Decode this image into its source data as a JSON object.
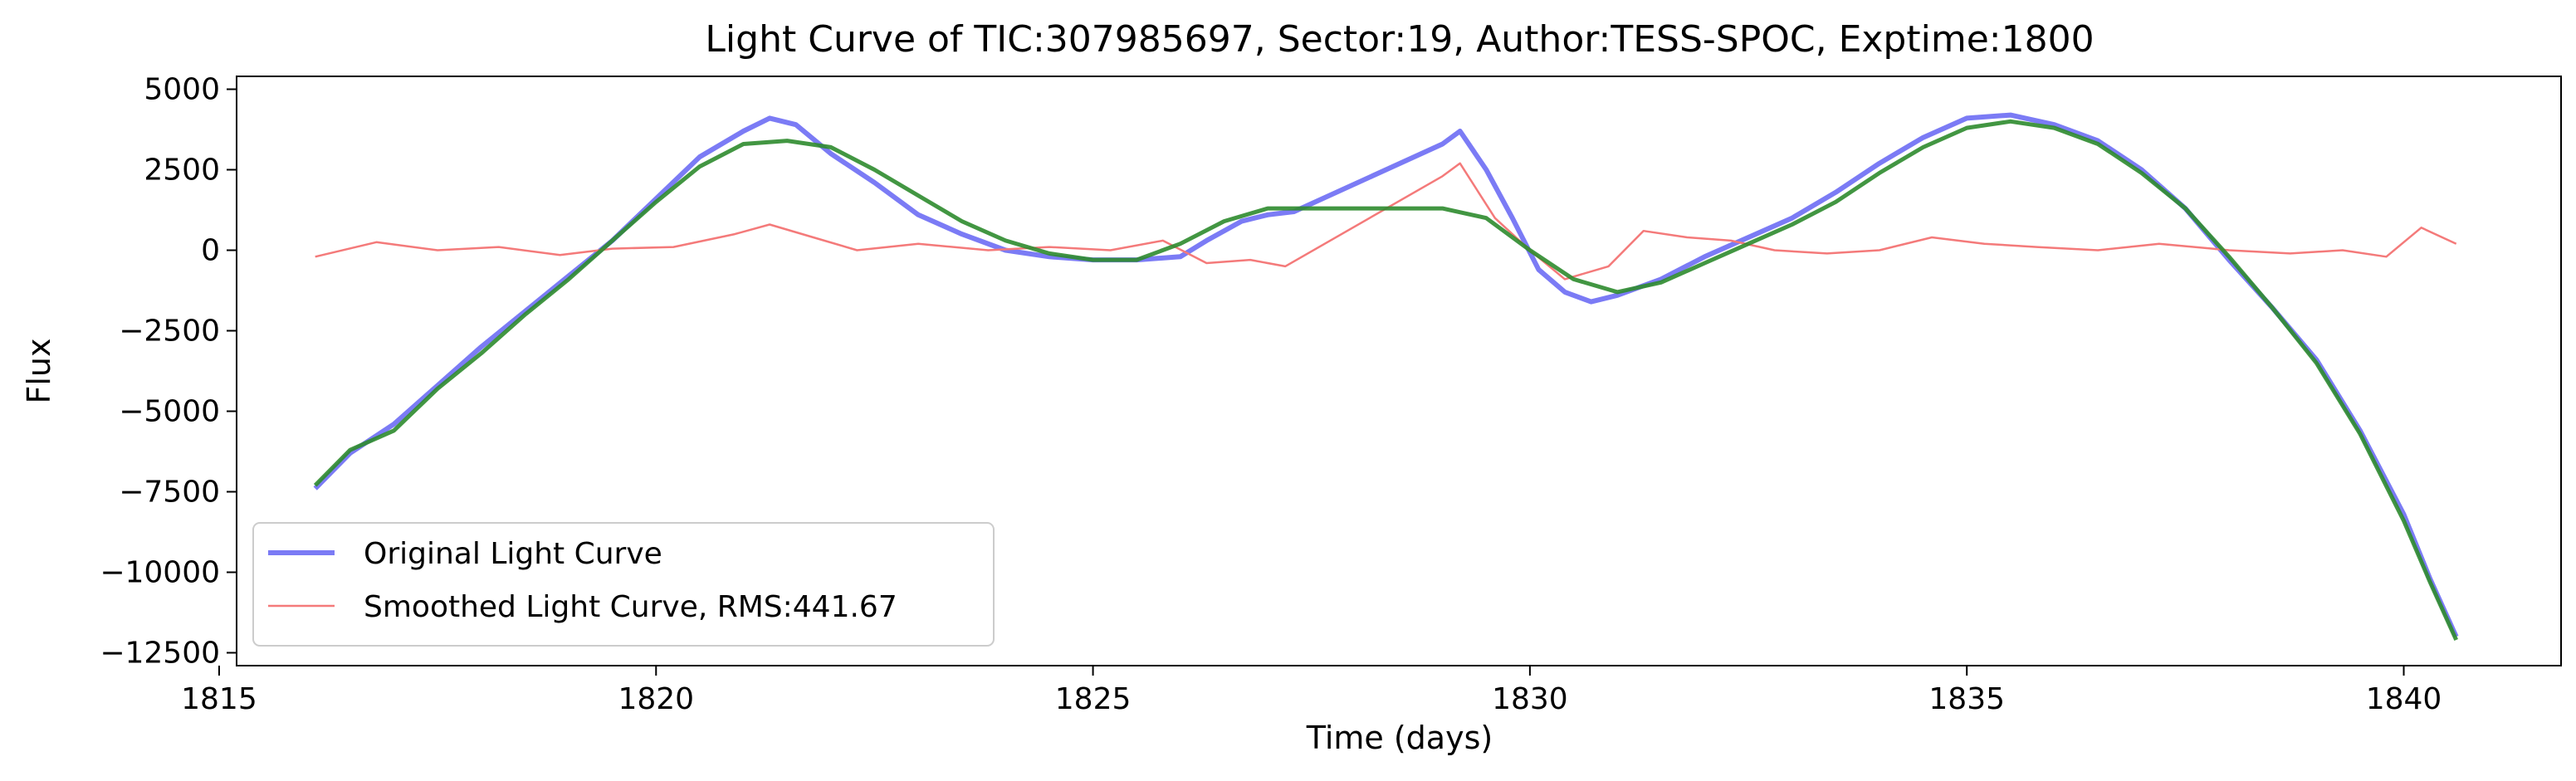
{
  "chart_data": {
    "type": "line",
    "title": "Light Curve of TIC:307985697, Sector:19, Author:TESS-SPOC, Exptime:1800",
    "xlabel": "Time (days)",
    "ylabel": "Flux",
    "xlim": [
      1815.2,
      1841.8
    ],
    "ylim": [
      -12900,
      5400
    ],
    "xticks": [
      1815,
      1820,
      1825,
      1830,
      1835,
      1840
    ],
    "yticks": [
      5000,
      2500,
      0,
      -2500,
      -5000,
      -7500,
      -10000,
      -12500
    ],
    "grid": false,
    "legend_position": "lower-left",
    "series": [
      {
        "name": "Original Light Curve",
        "color": "#7b7bf5",
        "x": [
          1816.1,
          1816.5,
          1817.0,
          1817.5,
          1818.0,
          1818.5,
          1819.0,
          1819.5,
          1820.0,
          1820.5,
          1821.0,
          1821.3,
          1821.6,
          1822.0,
          1822.5,
          1823.0,
          1823.5,
          1824.0,
          1824.5,
          1825.0,
          1825.5,
          1826.0,
          1826.3,
          1826.7,
          1827.0,
          1827.3,
          1829.0,
          1829.2,
          1829.5,
          1829.8,
          1830.1,
          1830.4,
          1830.7,
          1831.0,
          1831.5,
          1832.0,
          1832.5,
          1833.0,
          1833.5,
          1834.0,
          1834.5,
          1835.0,
          1835.5,
          1836.0,
          1836.5,
          1837.0,
          1837.5,
          1838.0,
          1838.5,
          1839.0,
          1839.5,
          1840.0,
          1840.3,
          1840.6
        ],
        "y": [
          -7400,
          -6300,
          -5400,
          -4200,
          -3000,
          -1900,
          -800,
          300,
          1600,
          2900,
          3700,
          4100,
          3900,
          3000,
          2100,
          1100,
          500,
          0,
          -200,
          -300,
          -300,
          -200,
          300,
          900,
          1100,
          1200,
          3300,
          3700,
          2500,
          1000,
          -600,
          -1300,
          -1600,
          -1400,
          -900,
          -200,
          400,
          1000,
          1800,
          2700,
          3500,
          4100,
          4200,
          3900,
          3400,
          2500,
          1300,
          -300,
          -1800,
          -3400,
          -5600,
          -8200,
          -10200,
          -12000
        ]
      },
      {
        "name": "Smoothed Light Curve, RMS:441.67",
        "color": "#f47a7a",
        "x": [
          1816.1,
          1816.8,
          1817.5,
          1818.2,
          1818.9,
          1819.5,
          1820.2,
          1820.9,
          1821.3,
          1821.8,
          1822.3,
          1823.0,
          1823.8,
          1824.5,
          1825.2,
          1825.8,
          1826.3,
          1826.8,
          1827.2,
          1829.0,
          1829.2,
          1829.6,
          1830.0,
          1830.4,
          1830.9,
          1831.3,
          1831.8,
          1832.3,
          1832.8,
          1833.4,
          1834.0,
          1834.6,
          1835.2,
          1835.8,
          1836.5,
          1837.2,
          1838.0,
          1838.7,
          1839.3,
          1839.8,
          1840.2,
          1840.6
        ],
        "y": [
          -200,
          250,
          0,
          100,
          -150,
          50,
          100,
          500,
          800,
          400,
          0,
          200,
          0,
          100,
          0,
          300,
          -400,
          -300,
          -500,
          2300,
          2700,
          1000,
          0,
          -900,
          -500,
          600,
          400,
          300,
          0,
          -100,
          0,
          400,
          200,
          100,
          0,
          200,
          0,
          -100,
          0,
          -200,
          700,
          200
        ]
      },
      {
        "name": "",
        "color": "#2e8b2e",
        "x": [
          1816.1,
          1816.5,
          1817.0,
          1817.5,
          1818.0,
          1818.5,
          1819.0,
          1819.5,
          1820.0,
          1820.5,
          1821.0,
          1821.5,
          1822.0,
          1822.5,
          1823.0,
          1823.5,
          1824.0,
          1824.5,
          1825.0,
          1825.5,
          1826.0,
          1826.5,
          1827.0,
          1827.5,
          1828.0,
          1828.5,
          1829.0,
          1829.5,
          1830.0,
          1830.5,
          1831.0,
          1831.5,
          1832.0,
          1832.5,
          1833.0,
          1833.5,
          1834.0,
          1834.5,
          1835.0,
          1835.5,
          1836.0,
          1836.5,
          1837.0,
          1837.5,
          1838.0,
          1838.5,
          1839.0,
          1839.5,
          1840.0,
          1840.3,
          1840.6
        ],
        "y": [
          -7300,
          -6200,
          -5600,
          -4300,
          -3200,
          -2000,
          -900,
          300,
          1500,
          2600,
          3300,
          3400,
          3200,
          2500,
          1700,
          900,
          300,
          -100,
          -300,
          -300,
          200,
          900,
          1300,
          1300,
          1300,
          1300,
          1300,
          1000,
          0,
          -900,
          -1300,
          -1000,
          -400,
          200,
          800,
          1500,
          2400,
          3200,
          3800,
          4000,
          3800,
          3300,
          2400,
          1300,
          -200,
          -1800,
          -3500,
          -5700,
          -8400,
          -10300,
          -12100
        ]
      }
    ]
  }
}
